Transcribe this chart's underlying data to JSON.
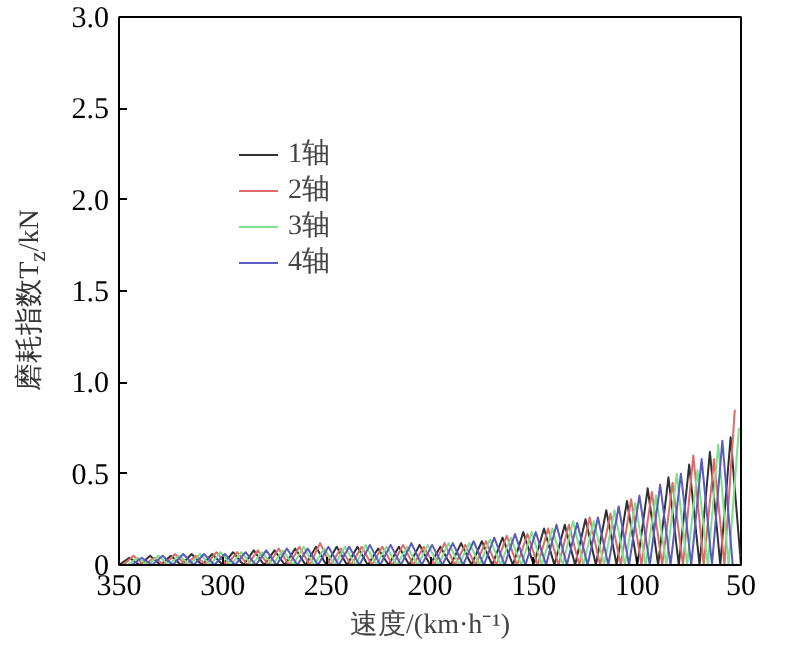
{
  "chart_data": {
    "type": "line",
    "xlabel": "速度/(km·h⁻¹)",
    "ylabel": "磨耗指数T$_{z}$/kN",
    "xlim": [
      350,
      50
    ],
    "ylim": [
      0,
      3.0
    ],
    "xticks": [
      350,
      300,
      250,
      200,
      150,
      100,
      50
    ],
    "yticks": [
      0,
      {
        "value": 0.5,
        "label": "0.5"
      },
      {
        "value": 1.0,
        "label": "1.0"
      },
      {
        "value": 1.5,
        "label": "1.5"
      },
      {
        "value": 2.0,
        "label": "2.0"
      },
      {
        "value": 2.5,
        "label": "2.5"
      },
      {
        "value": 3.0,
        "label": "3.0"
      }
    ],
    "grid": false,
    "legend": "top left",
    "marker": "none",
    "line_style": "solid",
    "series": [
      {
        "name": "1轴",
        "color": "#303030",
        "x": [
          350,
          345,
          340,
          335,
          330,
          325,
          320,
          315,
          310,
          305,
          300,
          295,
          290,
          285,
          280,
          275,
          270,
          265,
          260,
          255,
          250,
          245,
          240,
          235,
          230,
          225,
          220,
          215,
          210,
          205,
          200,
          195,
          190,
          185,
          180,
          175,
          170,
          165,
          160,
          155,
          150,
          145,
          140,
          135,
          130,
          125,
          120,
          115,
          110,
          105,
          100,
          95,
          90,
          85,
          80,
          75,
          70,
          65,
          60,
          55,
          50
        ],
        "values": [
          0,
          0.04,
          0,
          0.05,
          0,
          0.05,
          0,
          0.06,
          0,
          0.06,
          0,
          0.07,
          0,
          0.08,
          0,
          0.08,
          0,
          0.09,
          0,
          0.1,
          0,
          0.1,
          0,
          0.1,
          0,
          0.09,
          0,
          0.1,
          0,
          0.11,
          0,
          0.1,
          0,
          0.12,
          0,
          0.13,
          0,
          0.15,
          0,
          0.18,
          0,
          0.2,
          0,
          0.22,
          0,
          0.25,
          0,
          0.3,
          0,
          0.35,
          0,
          0.42,
          0,
          0.48,
          0,
          0.55,
          0,
          0.62,
          0,
          0.7,
          0
        ]
      },
      {
        "name": "2轴",
        "color": "#e06a6a",
        "x": [
          348,
          343,
          338,
          333,
          328,
          323,
          318,
          313,
          308,
          303,
          298,
          293,
          288,
          283,
          278,
          273,
          268,
          263,
          258,
          253,
          248,
          243,
          238,
          233,
          228,
          223,
          218,
          213,
          208,
          203,
          198,
          193,
          188,
          183,
          178,
          173,
          168,
          163,
          158,
          153,
          148,
          143,
          138,
          133,
          128,
          123,
          118,
          113,
          108,
          103,
          98,
          93,
          88,
          83,
          78,
          73,
          68,
          63,
          58,
          53
        ],
        "values": [
          0,
          0.05,
          0,
          0.04,
          0,
          0.06,
          0,
          0.05,
          0,
          0.07,
          0,
          0.07,
          0,
          0.08,
          0,
          0.09,
          0,
          0.1,
          0,
          0.12,
          0,
          0.09,
          0,
          0.1,
          0,
          0.1,
          0,
          0.11,
          0,
          0.1,
          0,
          0.12,
          0,
          0.11,
          0,
          0.13,
          0,
          0.16,
          0,
          0.17,
          0,
          0.2,
          0,
          0.22,
          0,
          0.26,
          0,
          0.28,
          0,
          0.36,
          0,
          0.4,
          0,
          0.45,
          0,
          0.6,
          0,
          0.58,
          0,
          0.85
        ]
      },
      {
        "name": "3轴",
        "color": "#7ee08a",
        "x": [
          346,
          341,
          336,
          331,
          326,
          321,
          316,
          311,
          306,
          301,
          296,
          291,
          286,
          281,
          276,
          271,
          266,
          261,
          256,
          251,
          246,
          241,
          236,
          231,
          226,
          221,
          216,
          211,
          206,
          201,
          196,
          191,
          186,
          181,
          176,
          171,
          166,
          161,
          156,
          151,
          146,
          141,
          136,
          131,
          126,
          121,
          116,
          111,
          106,
          101,
          96,
          91,
          86,
          81,
          76,
          71,
          66,
          61,
          56,
          51
        ],
        "values": [
          0,
          0.04,
          0,
          0.05,
          0,
          0.05,
          0,
          0.06,
          0,
          0.07,
          0,
          0.07,
          0,
          0.07,
          0,
          0.08,
          0,
          0.1,
          0,
          0.09,
          0,
          0.1,
          0,
          0.11,
          0,
          0.1,
          0,
          0.1,
          0,
          0.11,
          0,
          0.12,
          0,
          0.12,
          0,
          0.14,
          0,
          0.15,
          0,
          0.18,
          0,
          0.2,
          0,
          0.24,
          0,
          0.24,
          0,
          0.3,
          0,
          0.34,
          0,
          0.38,
          0,
          0.5,
          0,
          0.52,
          0,
          0.66,
          0,
          0.75
        ]
      },
      {
        "name": "4轴",
        "color": "#5a5ac0",
        "x": [
          344,
          339,
          334,
          329,
          324,
          319,
          314,
          309,
          304,
          299,
          294,
          289,
          284,
          279,
          274,
          269,
          264,
          259,
          254,
          249,
          244,
          239,
          234,
          229,
          224,
          219,
          214,
          209,
          204,
          199,
          194,
          189,
          184,
          179,
          174,
          169,
          164,
          159,
          154,
          149,
          144,
          139,
          134,
          129,
          124,
          119,
          114,
          109,
          104,
          99,
          94,
          89,
          84,
          79,
          74,
          69,
          64,
          59,
          54
        ],
        "values": [
          0,
          0.04,
          0,
          0.05,
          0,
          0.06,
          0,
          0.06,
          0,
          0.06,
          0,
          0.07,
          0,
          0.08,
          0,
          0.09,
          0,
          0.09,
          0,
          0.1,
          0,
          0.1,
          0,
          0.11,
          0,
          0.11,
          0,
          0.12,
          0,
          0.11,
          0,
          0.12,
          0,
          0.13,
          0,
          0.15,
          0,
          0.17,
          0,
          0.18,
          0,
          0.22,
          0,
          0.23,
          0,
          0.26,
          0,
          0.32,
          0,
          0.38,
          0,
          0.44,
          0,
          0.5,
          0,
          0.58,
          0,
          0.68,
          0
        ]
      }
    ]
  }
}
